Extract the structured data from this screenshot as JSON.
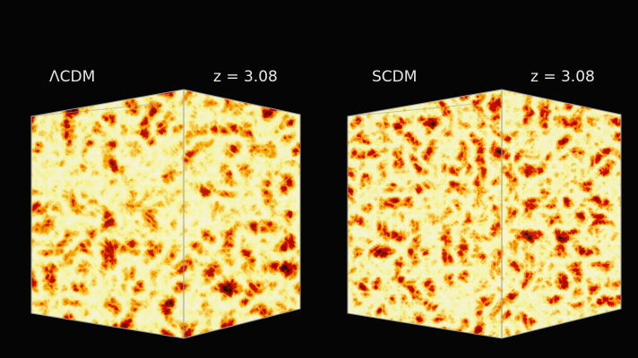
{
  "panels": [
    {
      "label": "ΛCDM",
      "redshift": "z = 3.08"
    },
    {
      "label": "SCDM",
      "redshift": "z = 3.08"
    }
  ]
}
